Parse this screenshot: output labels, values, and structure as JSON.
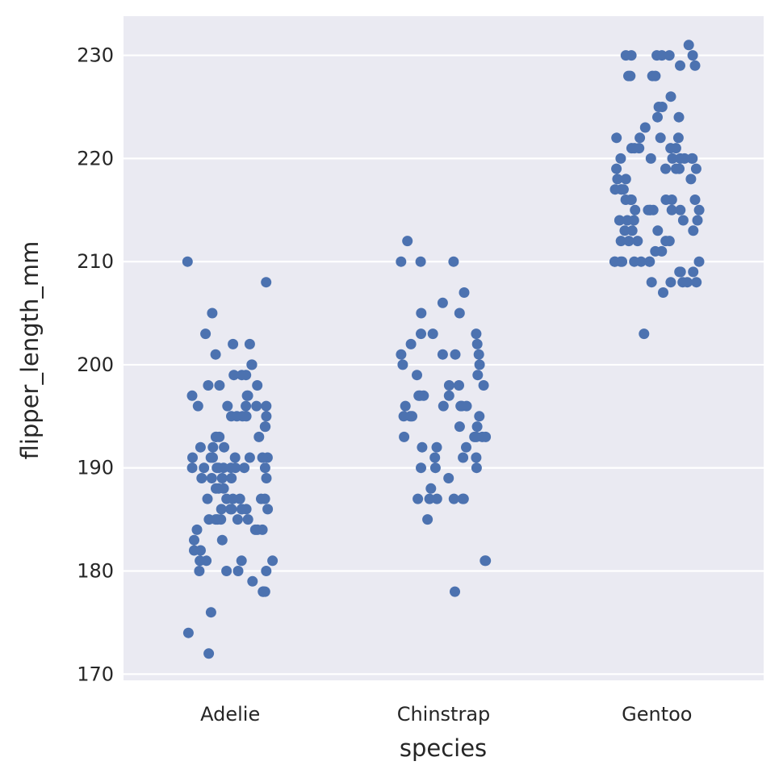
{
  "chart_data": {
    "type": "scatter",
    "subtype": "strip",
    "title": "",
    "xlabel": "species",
    "ylabel": "flipper_length_mm",
    "categories": [
      "Adelie",
      "Chinstrap",
      "Gentoo"
    ],
    "ylim": [
      169.4,
      233.8
    ],
    "yticks": [
      170,
      180,
      190,
      200,
      210,
      220,
      230
    ],
    "grid": true,
    "legend": "none",
    "colors": {
      "point": "#4c72b0",
      "background": "#eaeaf2",
      "grid": "#ffffff"
    },
    "values": {
      "Adelie": [
        210,
        208,
        205,
        203,
        202,
        202,
        201,
        200,
        200,
        199,
        199,
        199,
        198,
        198,
        198,
        197,
        197,
        197,
        196,
        196,
        196,
        196,
        196,
        195,
        195,
        195,
        195,
        195,
        194,
        194,
        193,
        193,
        193,
        193,
        192,
        192,
        192,
        191,
        191,
        191,
        191,
        191,
        191,
        191,
        190,
        190,
        190,
        190,
        190,
        190,
        190,
        190,
        190,
        189,
        189,
        189,
        189,
        189,
        188,
        188,
        188,
        187,
        187,
        187,
        187,
        187,
        187,
        186,
        186,
        186,
        186,
        186,
        186,
        186,
        185,
        185,
        185,
        185,
        185,
        185,
        184,
        184,
        184,
        184,
        183,
        183,
        182,
        182,
        181,
        181,
        181,
        181,
        180,
        180,
        180,
        180,
        178,
        178,
        178,
        178,
        179,
        176,
        174,
        172
      ],
      "Chinstrap": [
        212,
        210,
        210,
        210,
        207,
        206,
        205,
        205,
        203,
        203,
        203,
        202,
        202,
        201,
        201,
        201,
        201,
        200,
        200,
        199,
        199,
        198,
        198,
        198,
        197,
        197,
        197,
        197,
        196,
        196,
        196,
        196,
        196,
        195,
        195,
        195,
        195,
        194,
        194,
        193,
        193,
        193,
        193,
        193,
        192,
        192,
        192,
        191,
        191,
        191,
        190,
        190,
        190,
        189,
        188,
        187,
        187,
        187,
        187,
        187,
        187,
        185,
        181,
        181,
        178
      ],
      "Gentoo": [
        231,
        230,
        230,
        230,
        230,
        230,
        230,
        229,
        229,
        228,
        228,
        228,
        228,
        226,
        225,
        225,
        224,
        224,
        223,
        222,
        222,
        222,
        222,
        221,
        221,
        221,
        221,
        221,
        220,
        220,
        220,
        220,
        220,
        220,
        220,
        219,
        219,
        219,
        219,
        219,
        218,
        218,
        218,
        217,
        217,
        217,
        217,
        216,
        216,
        216,
        216,
        216,
        216,
        215,
        215,
        215,
        215,
        215,
        215,
        215,
        215,
        214,
        214,
        214,
        214,
        214,
        213,
        213,
        213,
        213,
        212,
        212,
        212,
        212,
        212,
        211,
        211,
        210,
        210,
        210,
        210,
        210,
        210,
        210,
        210,
        210,
        209,
        209,
        209,
        208,
        208,
        208,
        208,
        208,
        207,
        203
      ]
    }
  }
}
